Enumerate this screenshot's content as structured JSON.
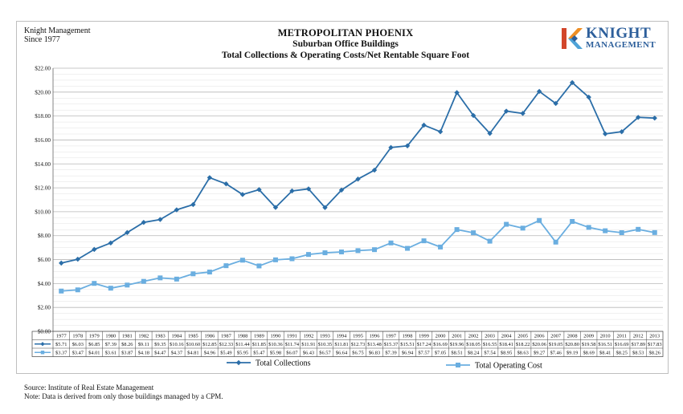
{
  "header": {
    "company_line1": "Knight Management",
    "company_line2": "Since 1977",
    "title": "METROPOLITAN PHOENIX",
    "subtitle1": "Suburban Office Buildings",
    "subtitle2": "Total Collections & Operating Costs/Net Rentable Square Foot"
  },
  "logo": {
    "word1": "KNIGHT",
    "word2": "MANAGEMENT",
    "colors": {
      "red": "#d2462b",
      "orange": "#ef8f25",
      "blue": "#2d5f9b",
      "light_blue": "#4fa3d8"
    }
  },
  "footer": {
    "source": "Source:  Institute of Real Estate Management",
    "note": "Note:  Data is derived from only those buildings managed by a CPM."
  },
  "chart_data": {
    "type": "line",
    "title": "METROPOLITAN PHOENIX",
    "xlabel": "",
    "ylabel": "",
    "ylim": [
      0,
      22
    ],
    "y_ticks": [
      "$0.00",
      "$2.00",
      "$4.00",
      "$6.00",
      "$8.00",
      "$10.00",
      "$12.00",
      "$14.00",
      "$16.00",
      "$18.00",
      "$20.00",
      "$22.00"
    ],
    "grid": true,
    "legend_position": "bottom",
    "categories": [
      "1977",
      "1978",
      "1979",
      "1980",
      "1981",
      "1982",
      "1983",
      "1984",
      "1985",
      "1986",
      "1987",
      "1988",
      "1989",
      "1990",
      "1991",
      "1992",
      "1993",
      "1994",
      "1995",
      "1996",
      "1997",
      "1998",
      "1999",
      "2000",
      "2001",
      "2002",
      "2003",
      "2004",
      "2005",
      "2006",
      "2007",
      "2008",
      "2009",
      "2010",
      "2011",
      "2012",
      "2013"
    ],
    "series": [
      {
        "name": "Total Collections",
        "color": "#2b6ea8",
        "marker": "diamond",
        "values": [
          5.71,
          6.03,
          6.85,
          7.39,
          8.26,
          9.11,
          9.35,
          10.16,
          10.6,
          12.85,
          12.33,
          11.44,
          11.85,
          10.36,
          11.74,
          11.91,
          10.35,
          11.81,
          12.73,
          13.48,
          15.37,
          15.51,
          17.24,
          16.69,
          19.96,
          18.05,
          16.55,
          18.41,
          18.22,
          20.06,
          19.05,
          20.8,
          19.58,
          16.51,
          16.69,
          17.89,
          17.83
        ],
        "labels": [
          "$5.71",
          "$6.03",
          "$6.85",
          "$7.39",
          "$8.26",
          "$9.11",
          "$9.35",
          "$10.16",
          "$10.60",
          "$12.85",
          "$12.33",
          "$11.44",
          "$11.85",
          "$10.36",
          "$11.74",
          "$11.91",
          "$10.35",
          "$11.81",
          "$12.73",
          "$13.48",
          "$15.37",
          "$15.51",
          "$17.24",
          "$16.69",
          "$19.96",
          "$18.05",
          "$16.55",
          "$18.41",
          "$18.22",
          "$20.06",
          "$19.05",
          "$20.80",
          "$19.58",
          "$16.51",
          "$16.69",
          "$17.89",
          "$17.83"
        ]
      },
      {
        "name": "Total Operating Cost",
        "color": "#6aaee0",
        "marker": "square",
        "values": [
          3.37,
          3.47,
          4.01,
          3.61,
          3.87,
          4.18,
          4.47,
          4.37,
          4.81,
          4.96,
          5.49,
          5.95,
          5.47,
          5.98,
          6.07,
          6.43,
          6.57,
          6.64,
          6.75,
          6.83,
          7.39,
          6.94,
          7.57,
          7.05,
          8.51,
          8.24,
          7.54,
          8.95,
          8.63,
          9.27,
          7.46,
          9.19,
          8.69,
          8.41,
          8.25,
          8.53,
          8.26
        ],
        "labels": [
          "$3.37",
          "$3.47",
          "$4.01",
          "$3.61",
          "$3.87",
          "$4.18",
          "$4.47",
          "$4.37",
          "$4.81",
          "$4.96",
          "$5.49",
          "$5.95",
          "$5.47",
          "$5.98",
          "$6.07",
          "$6.43",
          "$6.57",
          "$6.64",
          "$6.75",
          "$6.83",
          "$7.39",
          "$6.94",
          "$7.57",
          "$7.05",
          "$8.51",
          "$8.24",
          "$7.54",
          "$8.95",
          "$8.63",
          "$9.27",
          "$7.46",
          "$9.19",
          "$8.69",
          "$8.41",
          "$8.25",
          "$8.53",
          "$8.26"
        ]
      }
    ]
  }
}
